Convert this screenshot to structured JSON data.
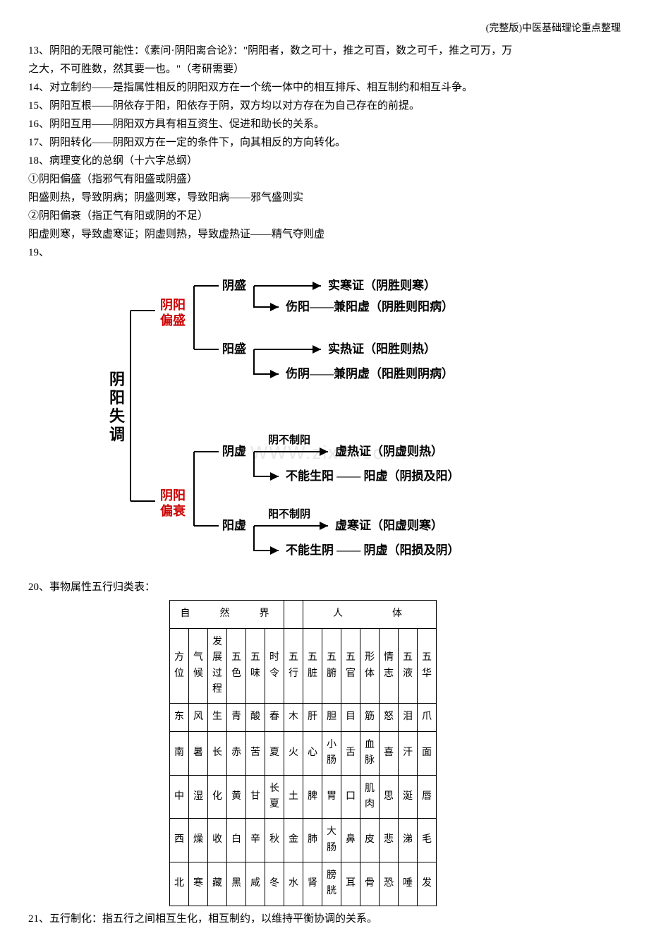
{
  "header": {
    "title": "(完整版)中医基础理论重点整理"
  },
  "lines": {
    "l13a": "13、阴阳的无限可能性：《素问·阴阳离合论》：\"阴阳者，数之可十，推之可百，数之可千，推之可万，万",
    "l13b": "之大，不可胜数，然其要一也。\"（考研需要）",
    "l14": "14、对立制约——是指属性相反的阴阳双方在一个统一体中的相互排斥、相互制约和相互斗争。",
    "l15": "15、阴阳互根——阴依存于阳，阳依存于阴，双方均以对方存在为自己存在的前提。",
    "l16": "16、阴阳互用——阴阳双方具有相互资生、促进和助长的关系。",
    "l17": "17、阴阳转化——阴阳双方在一定的条件下，向其相反的方向转化。",
    "l18": "18、病理变化的总纲（十六字总纲）",
    "l18a": "①阴阳偏盛（指邪气有阳盛或阴盛）",
    "l18b": "阳盛则热，导致阴病；阴盛则寒，导致阳病——邪气盛则实",
    "l18c": "②阴阳偏衰（指正气有阳或阴的不足）",
    "l18d": "阳虚则寒，导致虚寒证；阴虚则热，导致虚热证——精气夺则虚",
    "l19": "19、",
    "l20": "20、事物属性五行归类表：",
    "l21": "21、五行制化：指五行之间相互生化，相互制约，以维持平衡协调的关系。"
  },
  "diagram": {
    "root": "阴阳失调",
    "branch1": {
      "label": "阴阳偏盛",
      "color": "#c00"
    },
    "branch2": {
      "label": "阴阳偏衰",
      "color": "#c00"
    },
    "nodes": {
      "yinsheng": "阴盛",
      "yangsheng": "阳盛",
      "yinxu": "阴虚",
      "yangxu": "阳虚",
      "shihanZheng": "实寒证（阴胜则寒）",
      "shangYang": "伤阳——兼阳虚（阴胜则阳病）",
      "shiReZheng": "实热证（阳胜则热）",
      "shangYin": "伤阴——兼阴虚（阳胜则阴病）",
      "yinBuZhiYang": "阴不制阳",
      "xuReZheng": "虚热证（阴虚则热）",
      "buNengShengYang": "不能生阳 —— 阳虚（阴损及阳）",
      "yangBuZhiYin": "阳不制阴",
      "xuHanZheng": "虚寒证（阳虚则寒）",
      "buNengShengYin": "不能生阴 —— 阴虚（阳损及阴）"
    },
    "watermark": "WWW.zixin.com.cn",
    "font_size": 17,
    "line_color": "#000",
    "label_color_red": "#c00",
    "bg": "#ffffff"
  },
  "table": {
    "group_headers": [
      "自　然　界",
      "",
      "人　　体"
    ],
    "columns": [
      "方位",
      "气候",
      "发展过程",
      "五色",
      "五味",
      "时令",
      "五行",
      "五脏",
      "五腑",
      "五官",
      "形体",
      "情志",
      "五液",
      "五华"
    ],
    "rows": [
      [
        "东",
        "风",
        "生",
        "青",
        "酸",
        "春",
        "木",
        "肝",
        "胆",
        "目",
        "筋",
        "怒",
        "泪",
        "爪"
      ],
      [
        "南",
        "暑",
        "长",
        "赤",
        "苦",
        "夏",
        "火",
        "心",
        "小肠",
        "舌",
        "血脉",
        "喜",
        "汗",
        "面"
      ],
      [
        "中",
        "湿",
        "化",
        "黄",
        "甘",
        "长夏",
        "土",
        "脾",
        "胃",
        "口",
        "肌肉",
        "思",
        "涎",
        "唇"
      ],
      [
        "西",
        "燥",
        "收",
        "白",
        "辛",
        "秋",
        "金",
        "肺",
        "大肠",
        "鼻",
        "皮",
        "悲",
        "涕",
        "毛"
      ],
      [
        "北",
        "寒",
        "藏",
        "黑",
        "咸",
        "冬",
        "水",
        "肾",
        "膀胱",
        "耳",
        "骨",
        "恐",
        "唾",
        "发"
      ]
    ],
    "group_spans": [
      6,
      1,
      7
    ],
    "border_color": "#000",
    "cell_padding": 8,
    "font_size": 14
  }
}
